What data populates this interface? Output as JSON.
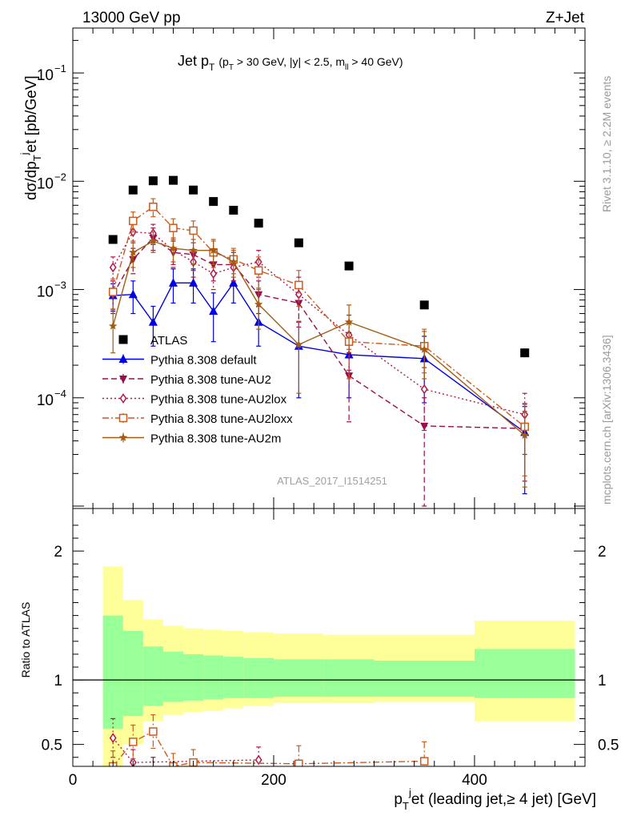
{
  "header": {
    "left": "13000 GeV pp",
    "right": "Z+Jet"
  },
  "side": {
    "rivet": "Rivet 3.1.10, ≥ 2.2M events",
    "mcplots": "mcplots.cern.ch [arXiv:1306.3436]"
  },
  "chart_data": [
    {
      "type": "scatter",
      "title": {
        "main": "Jet p",
        "main_sub": "T",
        "cuts": "(p",
        "cuts_sub1": "T",
        "cuts_mid": " > 30 GeV, |y| < 2.5, m",
        "cuts_sub2": "ll",
        "cuts_end": " > 40 GeV)"
      },
      "ylabel": {
        "a": "dσ/dp",
        "a_sub": "T",
        "b": "j",
        "c": "et [pb/GeV]"
      },
      "analysis_label": "ATLAS_2017_I1514251",
      "yscale": "log",
      "ylim": [
        9.5e-06,
        0.26
      ],
      "xlim": [
        0,
        510
      ],
      "ytick_labels": [
        "10",
        "−1",
        "10",
        "−2",
        "10",
        "−3",
        "10",
        "−4"
      ],
      "ytick_values": [
        0.1,
        0.01,
        0.001,
        0.0001
      ],
      "x": [
        40,
        60,
        80,
        100,
        120,
        140,
        160,
        185,
        225,
        275,
        350,
        450
      ],
      "xerr": [
        10,
        10,
        10,
        10,
        10,
        10,
        10,
        15,
        25,
        25,
        50,
        50
      ],
      "legend_position": "bottom-left",
      "series": [
        {
          "name": "ATLAS",
          "color": "#000000",
          "marker": "square",
          "line": "none",
          "values": [
            0.0029,
            0.0083,
            0.0101,
            0.0102,
            0.0083,
            0.0065,
            0.0054,
            0.0041,
            0.0027,
            0.00165,
            0.00072,
            0.00026
          ]
        },
        {
          "name": "Pythia 8.308 default",
          "color": "#0000e6",
          "marker": "triangle",
          "line": "solid",
          "values": [
            0.00088,
            0.0009,
            0.0005,
            0.00115,
            0.00115,
            0.00063,
            0.00115,
            0.0005,
            0.0003,
            0.00025,
            0.00023,
            4.8e-05
          ],
          "err": [
            0.00025,
            0.0003,
            0.0002,
            0.0004,
            0.0004,
            0.0003,
            0.0004,
            0.0002,
            0.0002,
            0.00015,
            0.00014,
            3.5e-05
          ]
        },
        {
          "name": "Pythia 8.308 tune-AU2",
          "color": "#9a0d4c",
          "marker": "triangle-down",
          "line": "dashed",
          "values": [
            0.0009,
            0.0019,
            0.003,
            0.0022,
            0.0021,
            0.0017,
            0.0017,
            0.0009,
            0.00075,
            0.00016,
            5.5e-05,
            5.2e-05
          ],
          "err": [
            0.0003,
            0.0005,
            0.0007,
            0.0006,
            0.0006,
            0.0005,
            0.0005,
            0.0003,
            0.0003,
            0.0001,
            4.5e-05,
            3.5e-05
          ]
        },
        {
          "name": "Pythia 8.308 tune-AU2lox",
          "color": "#b3174a",
          "marker": "diamond",
          "line": "dotted",
          "values": [
            0.0016,
            0.0034,
            0.0033,
            0.0023,
            0.0018,
            0.0014,
            0.0016,
            0.0018,
            0.0009,
            0.00038,
            0.00012,
            7e-05
          ],
          "err": [
            0.0004,
            0.0007,
            0.0007,
            0.0006,
            0.0005,
            0.0004,
            0.0004,
            0.0005,
            0.0004,
            0.0002,
            7e-05,
            4e-05
          ]
        },
        {
          "name": "Pythia 8.308 tune-AU2loxx",
          "color": "#cc5a1d",
          "marker": "square-open",
          "line": "dashdot",
          "values": [
            0.00095,
            0.0043,
            0.0058,
            0.0037,
            0.0035,
            0.0022,
            0.0019,
            0.0015,
            0.0011,
            0.00033,
            0.0003,
            5.4e-05
          ],
          "err": [
            0.0003,
            0.0009,
            0.0011,
            0.0008,
            0.0008,
            0.0006,
            0.0005,
            0.0005,
            0.0004,
            0.00018,
            0.00013,
            3.5e-05
          ]
        },
        {
          "name": "Pythia 8.308 tune-AU2m",
          "color": "#a45c12",
          "marker": "star",
          "line": "solid",
          "values": [
            0.00046,
            0.0022,
            0.0028,
            0.0024,
            0.0023,
            0.0023,
            0.0018,
            0.00073,
            0.00031,
            0.0005,
            0.00028,
            4.5e-05
          ],
          "err": [
            0.0002,
            0.0006,
            0.0006,
            0.0006,
            0.0006,
            0.0006,
            0.0005,
            0.0003,
            0.0002,
            0.00022,
            0.00013,
            3e-05
          ]
        }
      ]
    },
    {
      "type": "scatter",
      "ylabel": "Ratio to ATLAS",
      "xlabel": {
        "a": "p",
        "a_sub": "T",
        "b": "j",
        "c": "et (leading jet,≥ 4 jet) [GeV]"
      },
      "xlim": [
        0,
        510
      ],
      "ylim": [
        0.33,
        2.33
      ],
      "xtick_labels": [
        "0",
        "200",
        "400"
      ],
      "xtick_values": [
        0,
        200,
        400
      ],
      "ytick_labels": [
        "2",
        "1",
        "0.5"
      ],
      "ytick_values": [
        2,
        1,
        0.5
      ],
      "bands": {
        "edges": [
          30,
          50,
          70,
          90,
          110,
          130,
          150,
          170,
          200,
          250,
          300,
          400,
          500
        ],
        "inner": [
          [
            0.62,
            1.5
          ],
          [
            0.72,
            1.38
          ],
          [
            0.8,
            1.26
          ],
          [
            0.83,
            1.22
          ],
          [
            0.84,
            1.2
          ],
          [
            0.85,
            1.19
          ],
          [
            0.86,
            1.18
          ],
          [
            0.86,
            1.17
          ],
          [
            0.87,
            1.16
          ],
          [
            0.87,
            1.16
          ],
          [
            0.87,
            1.15
          ],
          [
            0.86,
            1.24
          ]
        ],
        "outer": [
          [
            0.3,
            1.88
          ],
          [
            0.5,
            1.62
          ],
          [
            0.68,
            1.47
          ],
          [
            0.73,
            1.42
          ],
          [
            0.75,
            1.4
          ],
          [
            0.76,
            1.39
          ],
          [
            0.78,
            1.38
          ],
          [
            0.8,
            1.37
          ],
          [
            0.82,
            1.36
          ],
          [
            0.82,
            1.35
          ],
          [
            0.83,
            1.35
          ],
          [
            0.68,
            1.46
          ]
        ]
      },
      "colors": {
        "inner": "#99ff99",
        "outer": "#ffff99"
      },
      "series": [
        {
          "name": "Pythia 8.308 tune-AU2lox",
          "color": "#b3174a",
          "marker": "diamond",
          "line": "dotted",
          "x": [
            40,
            60,
            185
          ],
          "values": [
            0.55,
            0.36,
            0.38
          ],
          "err": [
            0.15,
            0.1,
            0.1
          ]
        },
        {
          "name": "Pythia 8.308 tune-AU2loxx",
          "color": "#cc5a1d",
          "marker": "square-open",
          "line": "dashdot",
          "x": [
            40,
            60,
            80,
            100,
            120,
            225,
            350
          ],
          "values": [
            0.33,
            0.52,
            0.6,
            0.33,
            0.36,
            0.35,
            0.37
          ],
          "err": [
            0.12,
            0.13,
            0.13,
            0.1,
            0.1,
            0.14,
            0.15
          ]
        },
        {
          "name": "Pythia 8.308 tune-AU2",
          "color": "#9a0d4c",
          "marker": "triangle-down",
          "line": "dashed",
          "x": [
            80
          ],
          "values": [
            0.3
          ],
          "err": [
            0.1
          ]
        }
      ]
    }
  ]
}
